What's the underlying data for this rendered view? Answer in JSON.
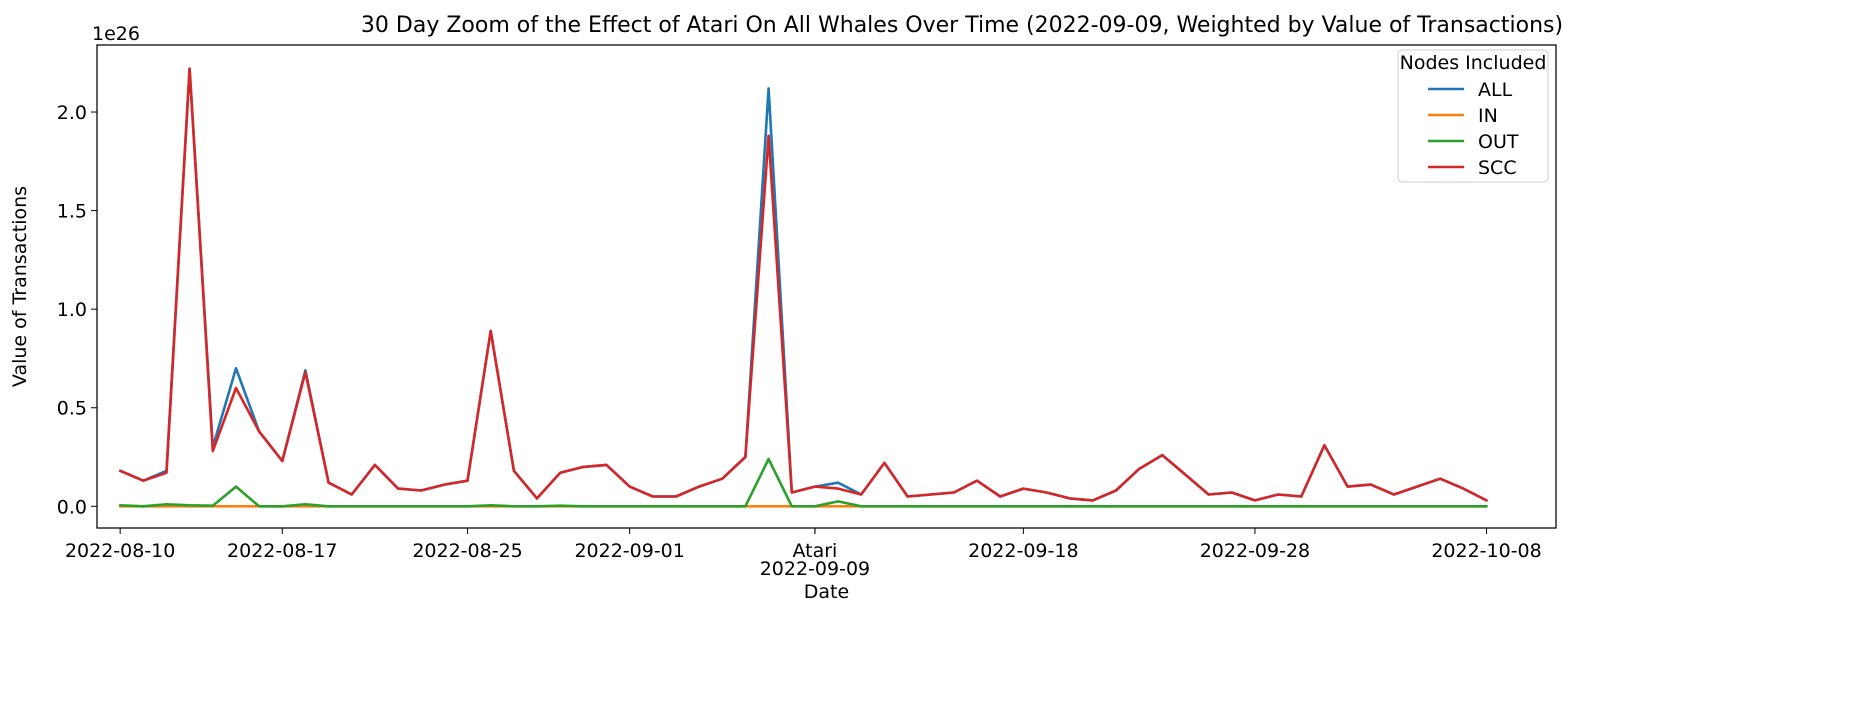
{
  "chart_data": {
    "type": "line",
    "title": "30 Day Zoom of the Effect of Atari On All Whales Over Time (2022-09-09, Weighted by Value of Transactions)",
    "xlabel": "Date",
    "ylabel": "Value of Transactions",
    "y_offset_label": "1e26",
    "y_scale": 1e+26,
    "ylim": [
      -0.11,
      2.34
    ],
    "xlim": [
      "2022-08-09",
      "2022-10-11"
    ],
    "y_ticks": [
      0.0,
      0.5,
      1.0,
      1.5,
      2.0
    ],
    "y_tick_labels": [
      "0.0",
      "0.5",
      "1.0",
      "1.5",
      "2.0"
    ],
    "x_ticks": [
      {
        "date": "2022-08-10",
        "label": "2022-08-10"
      },
      {
        "date": "2022-08-17",
        "label": "2022-08-17"
      },
      {
        "date": "2022-08-25",
        "label": "2022-08-25"
      },
      {
        "date": "2022-09-01",
        "label": "2022-09-01"
      },
      {
        "date": "2022-09-09",
        "label": "2022-09-09"
      },
      {
        "date": "2022-09-18",
        "label": "2022-09-18"
      },
      {
        "date": "2022-09-28",
        "label": "2022-09-28"
      },
      {
        "date": "2022-10-08",
        "label": "2022-10-08"
      }
    ],
    "event_label": {
      "date": "2022-09-09",
      "label": "Atari"
    },
    "legend": {
      "title": "Nodes Included",
      "placement": "top-right"
    },
    "x": [
      "2022-08-10",
      "2022-08-11",
      "2022-08-12",
      "2022-08-13",
      "2022-08-14",
      "2022-08-15",
      "2022-08-16",
      "2022-08-17",
      "2022-08-18",
      "2022-08-19",
      "2022-08-20",
      "2022-08-21",
      "2022-08-22",
      "2022-08-23",
      "2022-08-24",
      "2022-08-25",
      "2022-08-26",
      "2022-08-27",
      "2022-08-28",
      "2022-08-29",
      "2022-08-30",
      "2022-08-31",
      "2022-09-01",
      "2022-09-02",
      "2022-09-03",
      "2022-09-04",
      "2022-09-05",
      "2022-09-06",
      "2022-09-07",
      "2022-09-08",
      "2022-09-09",
      "2022-09-10",
      "2022-09-11",
      "2022-09-12",
      "2022-09-13",
      "2022-09-14",
      "2022-09-15",
      "2022-09-16",
      "2022-09-17",
      "2022-09-18",
      "2022-09-19",
      "2022-09-20",
      "2022-09-21",
      "2022-09-22",
      "2022-09-23",
      "2022-09-24",
      "2022-09-25",
      "2022-09-26",
      "2022-09-27",
      "2022-09-28",
      "2022-09-29",
      "2022-09-30",
      "2022-10-01",
      "2022-10-02",
      "2022-10-03",
      "2022-10-04",
      "2022-10-05",
      "2022-10-06",
      "2022-10-07",
      "2022-10-08"
    ],
    "series": [
      {
        "name": "ALL",
        "color": "#1f77b4",
        "values": [
          0.18,
          0.13,
          0.18,
          2.22,
          0.3,
          0.7,
          0.38,
          0.23,
          0.69,
          0.12,
          0.06,
          0.21,
          0.09,
          0.08,
          0.11,
          0.13,
          0.89,
          0.18,
          0.04,
          0.17,
          0.2,
          0.21,
          0.1,
          0.05,
          0.05,
          0.1,
          0.14,
          0.25,
          2.12,
          0.07,
          0.1,
          0.12,
          0.06,
          0.22,
          0.05,
          0.06,
          0.07,
          0.13,
          0.05,
          0.09,
          0.07,
          0.04,
          0.03,
          0.08,
          0.19,
          0.26,
          0.16,
          0.06,
          0.07,
          0.03,
          0.06,
          0.05,
          0.31,
          0.1,
          0.11,
          0.06,
          0.1,
          0.14,
          0.09,
          0.03
        ]
      },
      {
        "name": "IN",
        "color": "#ff7f0e",
        "values": [
          0,
          0,
          0,
          0,
          0,
          0,
          0,
          0,
          0,
          0,
          0,
          0,
          0,
          0,
          0,
          0,
          0,
          0,
          0,
          0,
          0,
          0,
          0,
          0,
          0,
          0,
          0,
          0,
          0,
          0,
          0,
          0,
          0,
          0,
          0,
          0,
          0,
          0,
          0,
          0,
          0,
          0,
          0,
          0,
          0,
          0,
          0,
          0,
          0,
          0,
          0,
          0,
          0,
          0,
          0,
          0,
          0,
          0,
          0,
          0
        ]
      },
      {
        "name": "OUT",
        "color": "#2ca02c",
        "values": [
          0.005,
          0,
          0.01,
          0.005,
          0.003,
          0.1,
          0,
          0,
          0.01,
          0,
          0,
          0,
          0,
          0,
          0,
          0,
          0.005,
          0,
          0,
          0.003,
          0,
          0,
          0,
          0,
          0,
          0,
          0,
          0,
          0.24,
          0,
          0,
          0.025,
          0,
          0,
          0,
          0,
          0,
          0,
          0,
          0,
          0,
          0,
          0,
          0,
          0,
          0,
          0,
          0,
          0,
          0,
          0,
          0,
          0,
          0,
          0,
          0,
          0,
          0,
          0,
          0
        ]
      },
      {
        "name": "SCC",
        "color": "#d62728",
        "values": [
          0.18,
          0.13,
          0.17,
          2.22,
          0.28,
          0.6,
          0.38,
          0.23,
          0.68,
          0.12,
          0.06,
          0.21,
          0.09,
          0.08,
          0.11,
          0.13,
          0.89,
          0.18,
          0.04,
          0.17,
          0.2,
          0.21,
          0.1,
          0.05,
          0.05,
          0.1,
          0.14,
          0.25,
          1.88,
          0.07,
          0.1,
          0.09,
          0.06,
          0.22,
          0.05,
          0.06,
          0.07,
          0.13,
          0.05,
          0.09,
          0.07,
          0.04,
          0.03,
          0.08,
          0.19,
          0.26,
          0.16,
          0.06,
          0.07,
          0.03,
          0.06,
          0.05,
          0.31,
          0.1,
          0.11,
          0.06,
          0.1,
          0.14,
          0.09,
          0.03
        ]
      }
    ]
  }
}
